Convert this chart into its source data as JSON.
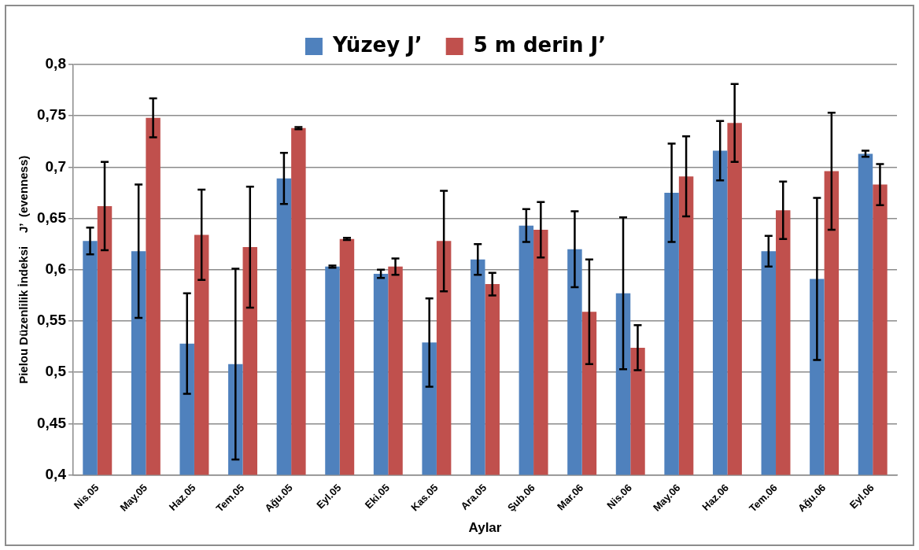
{
  "chart_data": {
    "type": "bar",
    "xlabel": "Aylar",
    "ylabel": "Pielou Düzenlilik İndeksi    J’  (evenness)",
    "categories": [
      "Nis.05",
      "May.05",
      "Haz.05",
      "Tem.05",
      "Ağu.05",
      "Eyl.05",
      "Eki.05",
      "Kas.05",
      "Ara.05",
      "Şub.06",
      "Mar.06",
      "Nis.06",
      "May.06",
      "Haz.06",
      "Tem.06",
      "Ağu.06",
      "Eyl.06"
    ],
    "series": [
      {
        "name": "Yüzey J’",
        "color": "#4f81bd",
        "values": [
          0.628,
          0.618,
          0.528,
          0.508,
          0.689,
          0.603,
          0.596,
          0.529,
          0.61,
          0.643,
          0.62,
          0.577,
          0.675,
          0.716,
          0.618,
          0.591,
          0.713
        ],
        "errors": [
          0.013,
          0.065,
          0.049,
          0.093,
          0.025,
          0.001,
          0.004,
          0.043,
          0.015,
          0.016,
          0.037,
          0.074,
          0.048,
          0.029,
          0.015,
          0.079,
          0.003
        ]
      },
      {
        "name": "5 m derin J’",
        "color": "#c0504d",
        "values": [
          0.662,
          0.748,
          0.634,
          0.622,
          0.738,
          0.63,
          0.603,
          0.628,
          0.586,
          0.639,
          0.559,
          0.524,
          0.691,
          0.743,
          0.658,
          0.696,
          0.683
        ],
        "errors": [
          0.043,
          0.019,
          0.044,
          0.059,
          0.001,
          0.001,
          0.008,
          0.049,
          0.011,
          0.027,
          0.051,
          0.022,
          0.039,
          0.038,
          0.028,
          0.057,
          0.02
        ]
      }
    ],
    "ylim": [
      0.4,
      0.8
    ],
    "yticks": [
      {
        "value": 0.4,
        "label": "0,4"
      },
      {
        "value": 0.45,
        "label": "0,45"
      },
      {
        "value": 0.5,
        "label": "0,5"
      },
      {
        "value": 0.55,
        "label": "0,55"
      },
      {
        "value": 0.6,
        "label": "0,6"
      },
      {
        "value": 0.65,
        "label": "0,65"
      },
      {
        "value": 0.7,
        "label": "0,7"
      },
      {
        "value": 0.75,
        "label": "0,75"
      },
      {
        "value": 0.8,
        "label": "0,8"
      }
    ],
    "grid": "y",
    "legend": "top"
  }
}
